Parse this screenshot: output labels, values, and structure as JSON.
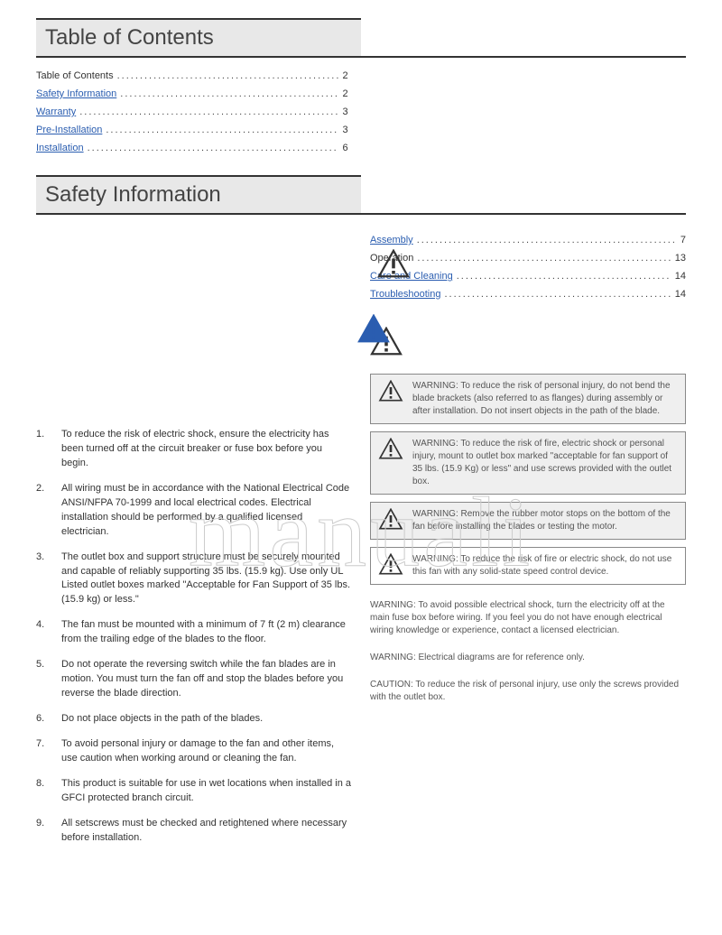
{
  "watermark_text": "manuali",
  "sections": {
    "toc_header": "Table of Contents",
    "safety_header": "Safety Information"
  },
  "toc_left": [
    {
      "label": "Table of Contents",
      "page": "2",
      "link": false
    },
    {
      "label": "Safety Information",
      "page": "2",
      "link": true
    },
    {
      "label": "Warranty",
      "page": "3",
      "link": true
    },
    {
      "label": "Pre-Installation",
      "page": "3",
      "link": true
    },
    {
      "label": "Installation",
      "page": "6",
      "link": true
    }
  ],
  "toc_right": [
    {
      "label": "Assembly",
      "page": "7",
      "link": true
    },
    {
      "label": "Operation",
      "page": "13",
      "link": false
    },
    {
      "label": "Care and Cleaning",
      "page": "14",
      "link": true
    },
    {
      "label": "Troubleshooting",
      "page": "14",
      "link": true
    }
  ],
  "safety_list": [
    "To reduce the risk of electric shock, ensure the electricity has been turned off at the circuit breaker or fuse box before you begin.",
    "All wiring must be in accordance with the National Electrical Code ANSI/NFPA 70-1999 and local electrical codes. Electrical installation should be performed by a qualified licensed electrician.",
    "The outlet box and support structure must be securely mounted and capable of reliably supporting 35 lbs. (15.9 kg). Use only UL Listed outlet boxes marked \"Acceptable for Fan Support of 35 lbs. (15.9 kg) or less.\"",
    "The fan must be mounted with a minimum of 7 ft (2 m) clearance from the trailing edge of the blades to the floor.",
    "Do not operate the reversing switch while the fan blades are in motion. You must turn the fan off and stop the blades before you reverse the blade direction.",
    "Do not place objects in the path of the blades.",
    "To avoid personal injury or damage to the fan and other items, use caution when working around or cleaning the fan.",
    "This product is suitable for use in wet locations when installed in a GFCI protected branch circuit.",
    "All setscrews must be checked and retightened where necessary before installation."
  ],
  "warnings_boxed": [
    {
      "shaded": true,
      "text": "WARNING: To reduce the risk of personal injury, do not bend the blade brackets (also referred to as flanges) during assembly or after installation. Do not insert objects in the path of the blade."
    },
    {
      "shaded": true,
      "text": "WARNING: To reduce the risk of fire, electric shock or personal injury, mount to outlet box marked \"acceptable for fan support of 35 lbs. (15.9 Kg) or less\" and use screws provided with the outlet box."
    },
    {
      "shaded": true,
      "text": "WARNING: Remove the rubber motor stops on the bottom of the fan before installing the blades or testing the motor."
    },
    {
      "shaded": false,
      "text": "WARNING: To reduce the risk of fire or electric shock, do not use this fan with any solid-state speed control device."
    }
  ],
  "warnings_plain": [
    "WARNING: To avoid possible electrical shock, turn the electricity off at the main fuse box before wiring. If you feel you do not have enough electrical wiring knowledge or experience, contact a licensed electrician.",
    "WARNING: Electrical diagrams are for reference only.",
    "CAUTION: To reduce the risk of personal injury, use only the screws provided with the outlet box."
  ],
  "colors": {
    "link": "#2a5db0",
    "header_bg": "#e8e8e8",
    "rule": "#333333",
    "box_border": "#888888",
    "box_shade": "#efefef",
    "text": "#333333",
    "text_muted": "#555555"
  }
}
